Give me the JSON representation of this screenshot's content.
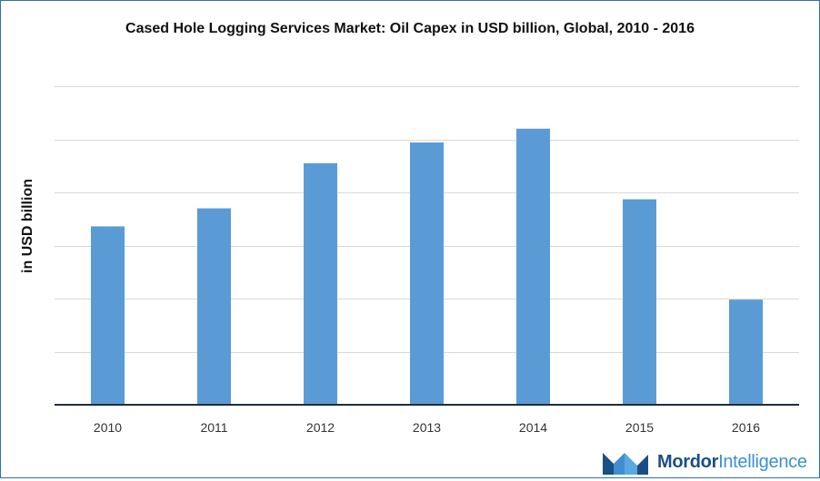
{
  "chart_data": {
    "type": "bar",
    "title": "Cased Hole Logging Services Market: Oil Capex in USD billion, Global, 2010 - 2016",
    "xlabel": "",
    "ylabel": "in USD billion",
    "categories": [
      "2010",
      "2011",
      "2012",
      "2013",
      "2014",
      "2015",
      "2016"
    ],
    "values": [
      3.36,
      3.7,
      4.55,
      4.94,
      5.2,
      3.87,
      1.98
    ],
    "ylim": [
      0,
      6
    ],
    "yticks": [
      0,
      1,
      2,
      3,
      4,
      5,
      6
    ],
    "ytick_labels_visible": false,
    "grid": true,
    "legend": "none",
    "bar_color": "#5b9bd5",
    "grid_color": "#d9d9d9",
    "axis_color": "#1f2d3d"
  },
  "branding": {
    "logo_word_1": "Mordor",
    "logo_word_2": "Intelligence",
    "logo_icon": "mordor-logo-icon",
    "colors": [
      "#1a4f86",
      "#3d8fd0"
    ]
  }
}
